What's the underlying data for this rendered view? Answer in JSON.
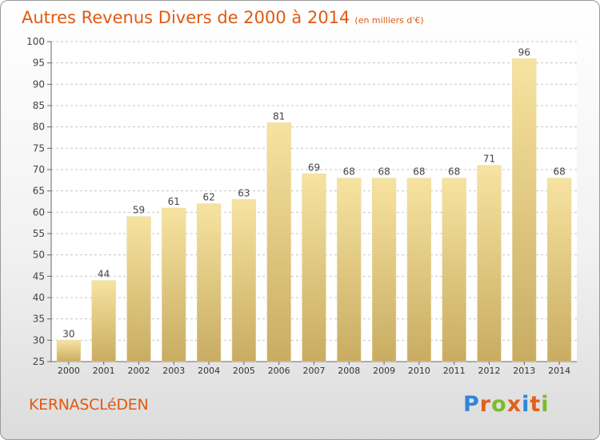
{
  "header": {
    "title": "Autres Revenus Divers de 2000 à 2014",
    "unit": "(en milliers d'€)"
  },
  "footer": {
    "commune": "KERNASCLéDEN",
    "logo_text": "Proxiti",
    "logo_colors": [
      "#2f86d8",
      "#e0621c",
      "#7cbb2a",
      "#e0621c",
      "#2f86d8",
      "#e0621c",
      "#7cbb2a"
    ]
  },
  "chart_data": {
    "type": "bar",
    "title": "Autres Revenus Divers de 2000 à 2014",
    "subtitle": "(en milliers d'€)",
    "categories": [
      "2000",
      "2001",
      "2002",
      "2003",
      "2004",
      "2005",
      "2006",
      "2007",
      "2008",
      "2009",
      "2010",
      "2011",
      "2012",
      "2013",
      "2014"
    ],
    "values": [
      30,
      44,
      59,
      61,
      62,
      63,
      81,
      69,
      68,
      68,
      68,
      68,
      71,
      96,
      68
    ],
    "ylim": [
      25,
      100
    ],
    "yticks": [
      25,
      30,
      35,
      40,
      45,
      50,
      55,
      60,
      65,
      70,
      75,
      80,
      85,
      90,
      95,
      100
    ],
    "grid": true,
    "bar_color_top": "#f7e3a0",
    "bar_color_bottom": "#c8ac62",
    "xlabel": "",
    "ylabel": ""
  }
}
